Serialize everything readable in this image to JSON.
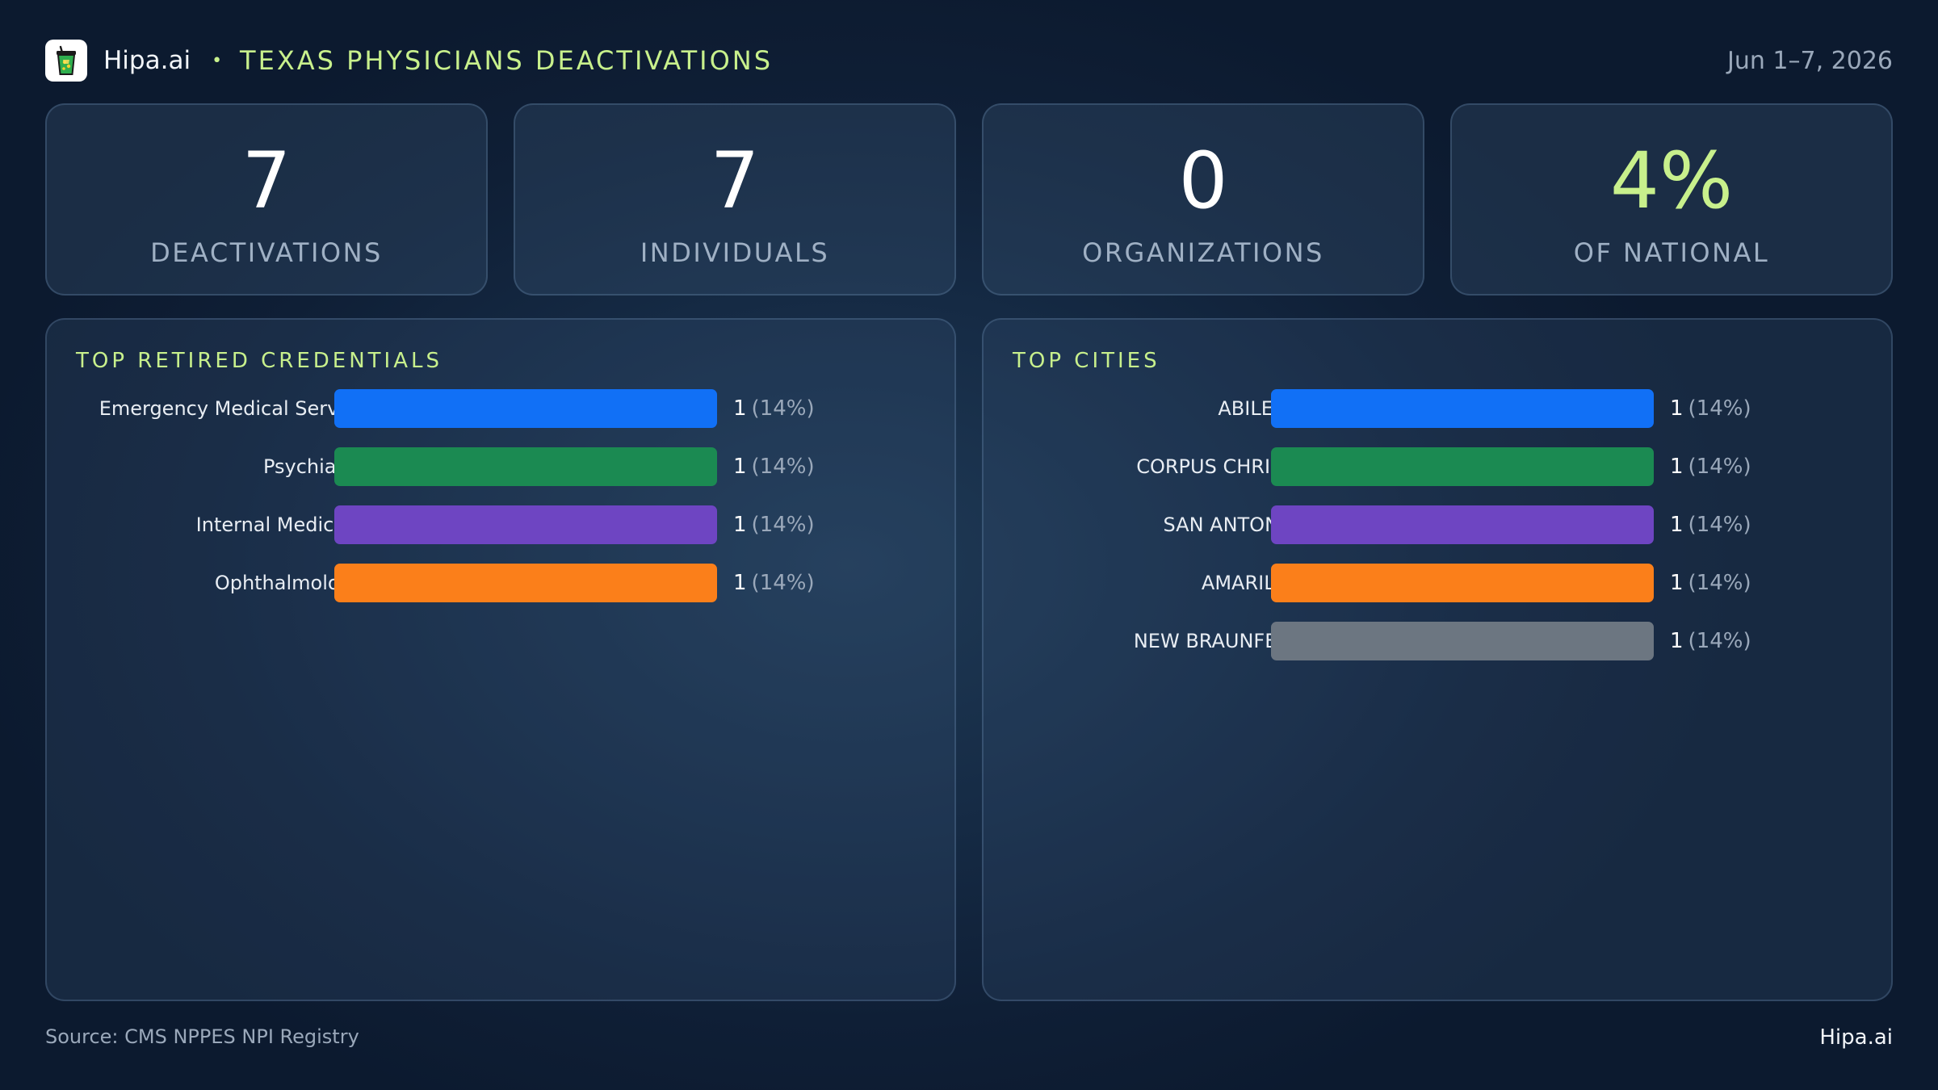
{
  "header": {
    "brand": "Hipa.ai",
    "separator": "•",
    "title": "TEXAS PHYSICIANS DEACTIVATIONS",
    "date_range": "Jun 1–7, 2026",
    "logo_icon": "cup-icon"
  },
  "stats": [
    {
      "value": "7",
      "label": "DEACTIVATIONS"
    },
    {
      "value": "7",
      "label": "INDIVIDUALS"
    },
    {
      "value": "0",
      "label": "ORGANIZATIONS"
    },
    {
      "value": "4%",
      "label": "OF NATIONAL"
    }
  ],
  "colors": {
    "accent": "#c8f08c",
    "blue": "#1170f6",
    "green": "#1b8a52",
    "purple": "#6e45c2",
    "orange": "#fb7f1a",
    "gray": "#6c7681"
  },
  "chart_data": [
    {
      "type": "bar",
      "orientation": "horizontal",
      "title": "TOP RETIRED CREDENTIALS",
      "categories": [
        "Emergency Medical Servi…",
        "Psychiatry",
        "Internal Medicine",
        "Ophthalmology"
      ],
      "values": [
        1,
        1,
        1,
        1
      ],
      "percent_labels": [
        "(14%)",
        "(14%)",
        "(14%)",
        "(14%)"
      ],
      "colors": [
        "#1170f6",
        "#1b8a52",
        "#6e45c2",
        "#fb7f1a"
      ],
      "xlim": [
        0,
        1
      ]
    },
    {
      "type": "bar",
      "orientation": "horizontal",
      "title": "TOP CITIES",
      "categories": [
        "ABILENE",
        "CORPUS CHRISTI",
        "SAN ANTONIO",
        "AMARILLO",
        "NEW BRAUNFELS"
      ],
      "values": [
        1,
        1,
        1,
        1,
        1
      ],
      "percent_labels": [
        "(14%)",
        "(14%)",
        "(14%)",
        "(14%)",
        "(14%)"
      ],
      "colors": [
        "#1170f6",
        "#1b8a52",
        "#6e45c2",
        "#fb7f1a",
        "#6c7681"
      ],
      "xlim": [
        0,
        1
      ]
    }
  ],
  "footer": {
    "source": "Source: CMS NPPES NPI Registry",
    "brand": "Hipa.ai"
  }
}
